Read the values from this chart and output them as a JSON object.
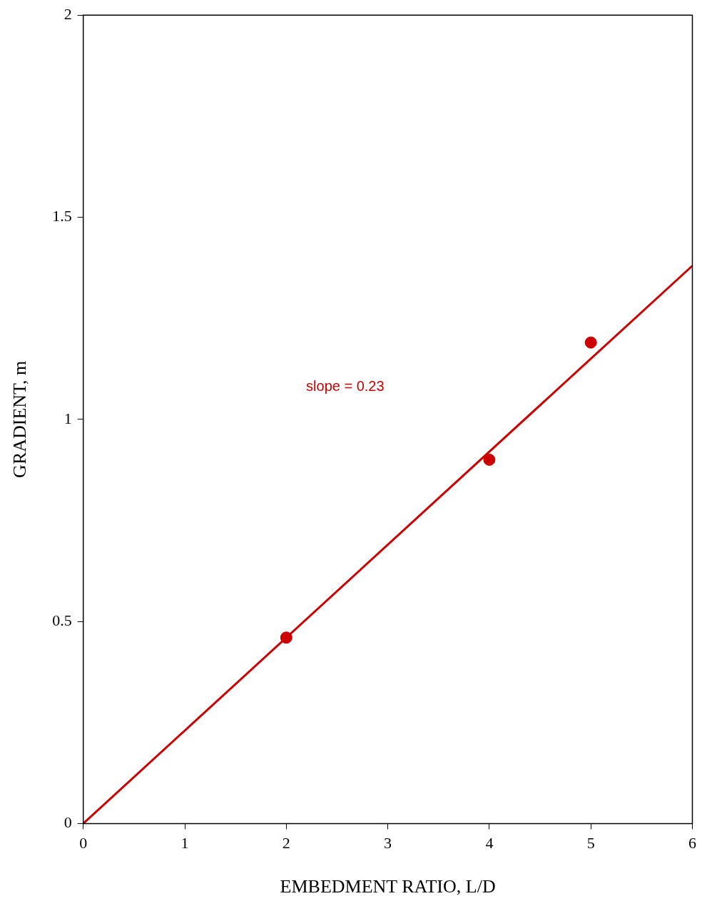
{
  "chart_data": {
    "type": "scatter",
    "xlabel": "EMBEDMENT RATIO, L/D",
    "ylabel": "GRADIENT, m",
    "xlim": [
      0,
      6
    ],
    "xticks": [
      0,
      1,
      2,
      3,
      4,
      5,
      6
    ],
    "ylim": [
      0,
      2
    ],
    "yticks": [
      0,
      0.5,
      1,
      1.5,
      2
    ],
    "grid": false,
    "legend": false,
    "marker": "circle",
    "series": [
      {
        "color": "#cc0000",
        "x": [
          2,
          4,
          5
        ],
        "values": [
          0.46,
          0.9,
          1.19
        ]
      },
      {
        "type": "line",
        "color": "#cc0000",
        "x": [
          0,
          6
        ],
        "values": [
          0,
          1.38
        ],
        "marker": "none",
        "line_style": "solid"
      }
    ],
    "annotations": [
      "slope = 0.23"
    ]
  }
}
